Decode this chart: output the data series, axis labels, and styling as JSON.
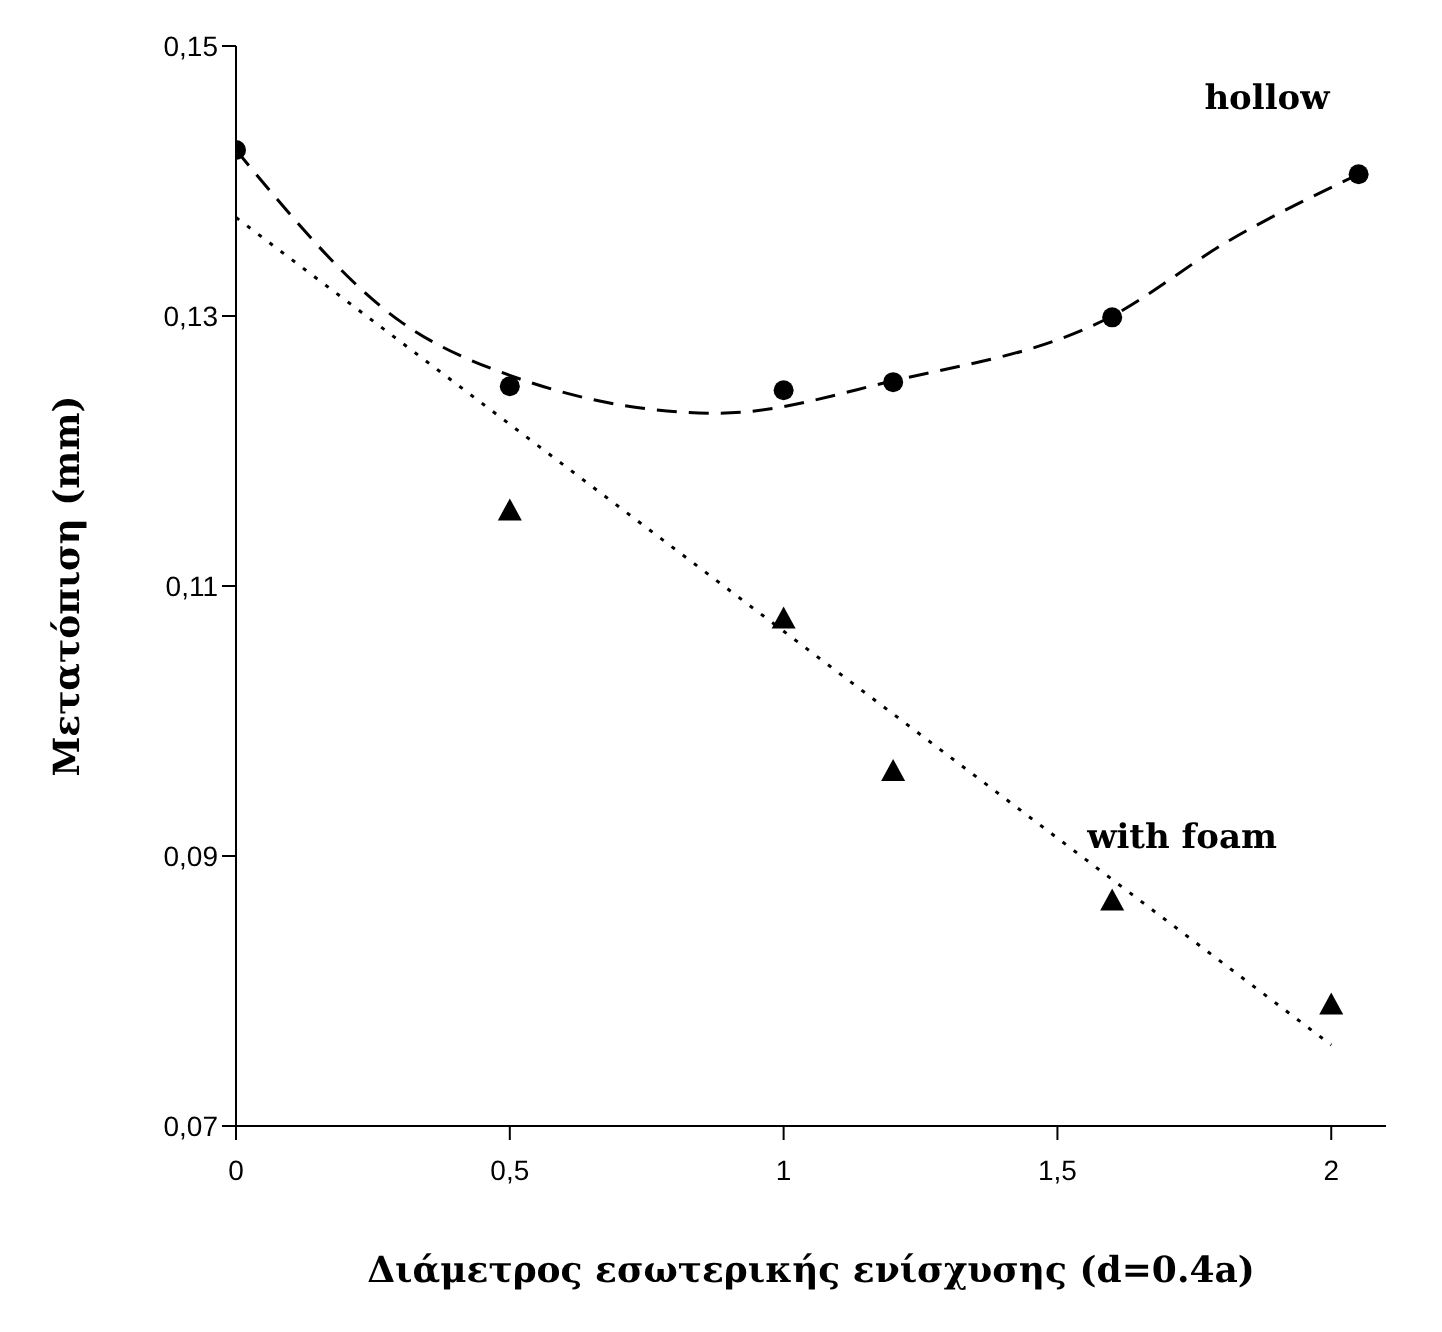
{
  "chart_data": {
    "type": "scatter",
    "xlabel": "Διάμετρος εσωτερικής ενίσχυσης (d=0.4a)",
    "ylabel": "Μετατόπιση (mm)",
    "xlim": [
      0,
      2.1
    ],
    "xticks": [
      0,
      {
        "value": 0.5,
        "label": "0,5"
      },
      1,
      {
        "value": 1.5,
        "label": "1,5"
      },
      2
    ],
    "ylim": [
      0.07,
      0.15
    ],
    "yticks": [
      {
        "value": 0.07,
        "label": "0,07"
      },
      {
        "value": 0.09,
        "label": "0,09"
      },
      {
        "value": 0.11,
        "label": "0,11"
      },
      {
        "value": 0.13,
        "label": "0,13"
      },
      {
        "value": 0.15,
        "label": "0,15"
      }
    ],
    "grid": false,
    "legend": false,
    "series": [
      {
        "name": "hollow",
        "marker": "circle",
        "color": "#000000",
        "x": [
          0,
          0.5,
          1,
          1.2,
          1.6,
          2.05
        ],
        "values": [
          0.1423,
          0.1248,
          0.1245,
          0.1251,
          0.1299,
          0.1405
        ]
      },
      {
        "name": "with foam",
        "marker": "triangle",
        "color": "#000000",
        "x": [
          0.5,
          1,
          1.2,
          1.6,
          2
        ],
        "values": [
          0.1156,
          0.1076,
          0.0963,
          0.0867,
          0.079
        ]
      },
      {
        "type": "line",
        "line_style": "dashed",
        "color": "#000000",
        "x": [
          0,
          0.3,
          0.5,
          0.88,
          1.2,
          1.6,
          1.81,
          2.05
        ],
        "values": [
          0.1423,
          0.1296,
          0.1256,
          0.1228,
          0.1252,
          0.13,
          0.1355,
          0.1405
        ]
      },
      {
        "type": "line",
        "line_style": "dotted",
        "color": "#000000",
        "x": [
          0,
          2
        ],
        "values": [
          0.1373,
          0.076
        ]
      }
    ]
  }
}
